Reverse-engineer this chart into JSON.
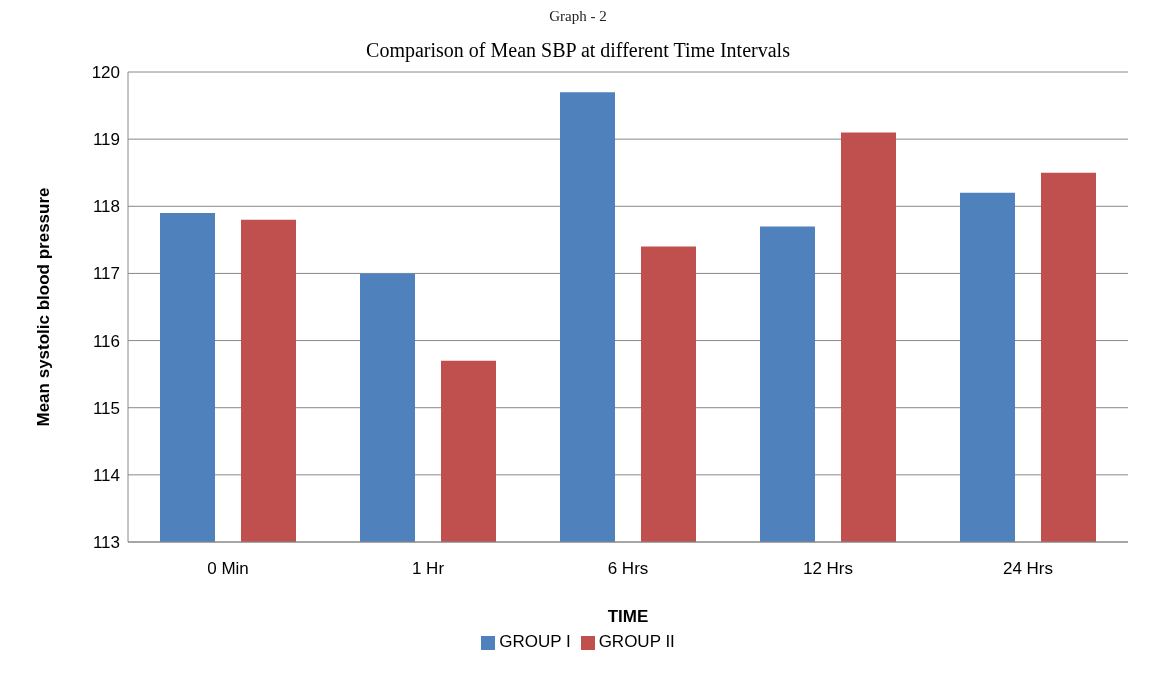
{
  "chart_data": {
    "type": "bar",
    "title": "Comparison of Mean SBP at different Time Intervals",
    "annotations": [
      "Graph - 2"
    ],
    "xlabel": "TIME",
    "ylabel": "Mean systolic blood pressure",
    "categories": [
      "0 Min",
      "1 Hr",
      "6 Hrs",
      "12 Hrs",
      "24 Hrs"
    ],
    "series": [
      {
        "name": "GROUP I",
        "color": "#4f81bd",
        "values": [
          117.9,
          117.0,
          119.7,
          117.7,
          118.2
        ]
      },
      {
        "name": "GROUP II",
        "color": "#c0504d",
        "values": [
          117.8,
          115.7,
          117.4,
          119.1,
          118.5
        ]
      }
    ],
    "ylim": [
      113,
      120
    ],
    "yticks": [
      113,
      114,
      115,
      116,
      117,
      118,
      119,
      120
    ],
    "grid": "y",
    "legend": "bottom"
  }
}
